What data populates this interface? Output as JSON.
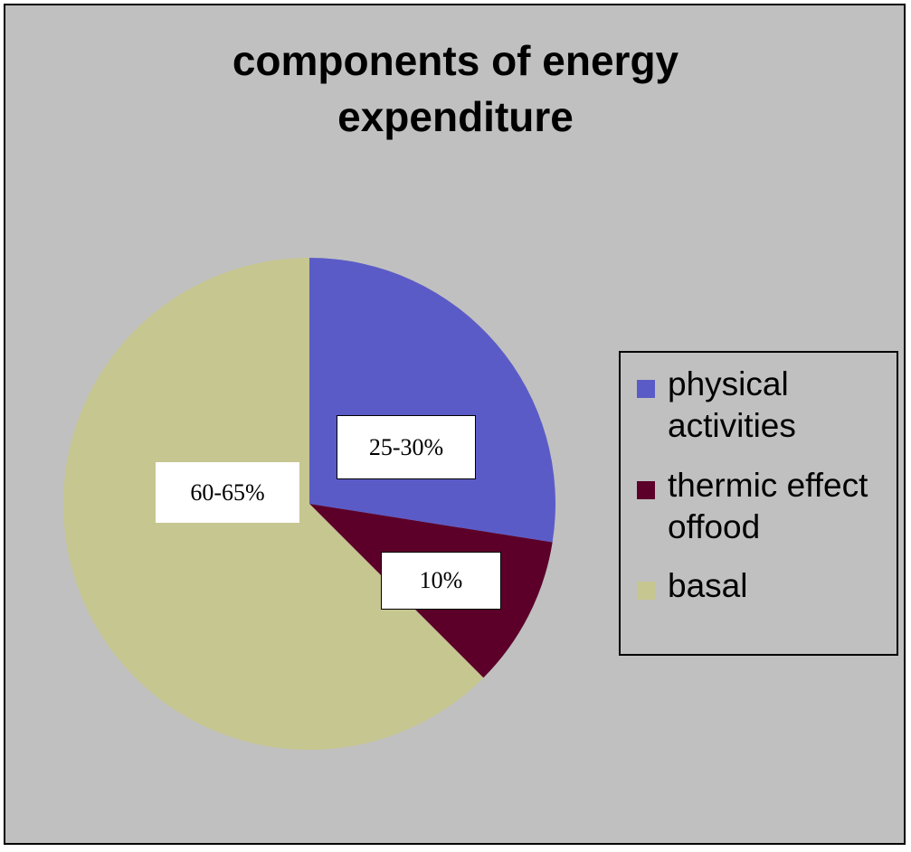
{
  "chart_data": {
    "type": "pie",
    "title_lines": [
      "components of energy",
      "expenditure"
    ],
    "slices": [
      {
        "label": "physical activities",
        "legend_lines": [
          "physical",
          "activities"
        ],
        "data_label": "25-30%",
        "value": 27.5,
        "color": "#5b5bc8"
      },
      {
        "label": "thermic effect offood",
        "legend_lines": [
          "thermic effect",
          "offood"
        ],
        "data_label": "10%",
        "value": 10,
        "color": "#5c002a"
      },
      {
        "label": "basal",
        "legend_lines": [
          "basal"
        ],
        "data_label": "60-65%",
        "value": 62.5,
        "color": "#c6c690"
      }
    ],
    "start_angle_deg": 0,
    "direction": "clockwise",
    "legend_position": "right",
    "background": "#c0c0c0"
  }
}
